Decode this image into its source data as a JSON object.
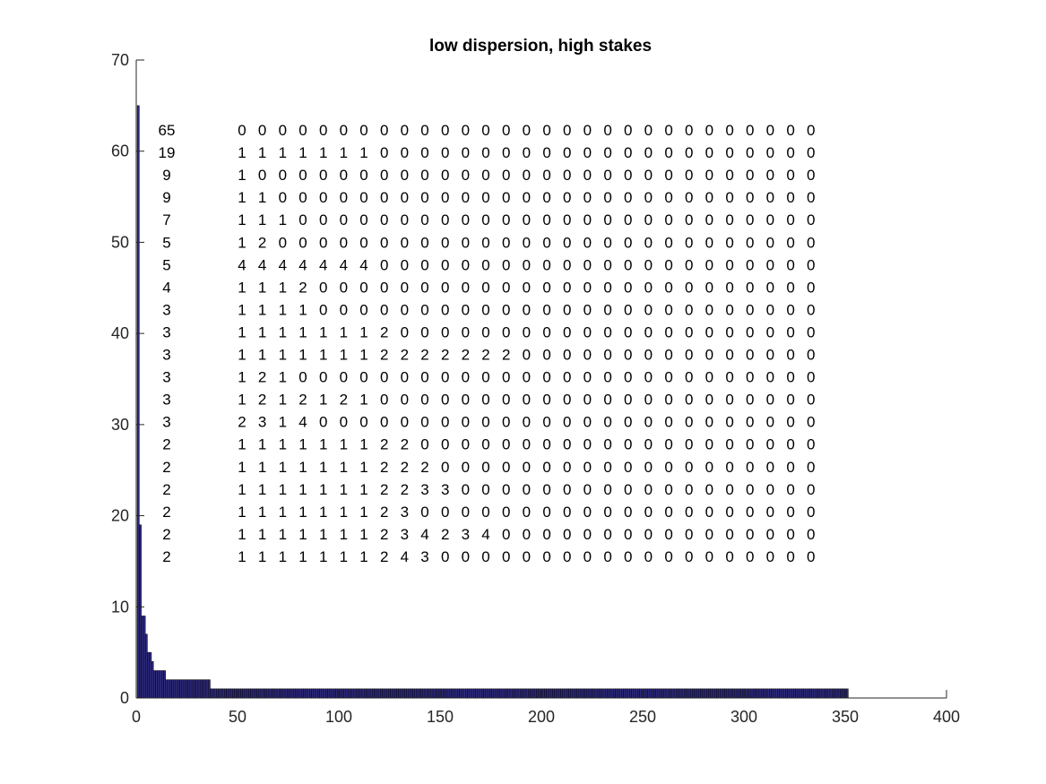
{
  "chart_data": {
    "type": "bar",
    "title": "low dispersion, high stakes",
    "xlabel": "",
    "ylabel": "",
    "xlim": [
      0,
      400
    ],
    "ylim": [
      0,
      70
    ],
    "xticks": [
      "0",
      "50",
      "100",
      "150",
      "200",
      "250",
      "300",
      "350",
      "400"
    ],
    "yticks": [
      "0",
      "10",
      "20",
      "30",
      "40",
      "50",
      "60",
      "70"
    ],
    "bar_color": "#2e2a80",
    "bar_edge_color": "#000000",
    "grid": false,
    "sorted_counts_summary": [
      {
        "from": 1,
        "to": 1,
        "value": 65
      },
      {
        "from": 2,
        "to": 2,
        "value": 19
      },
      {
        "from": 3,
        "to": 4,
        "value": 9
      },
      {
        "from": 5,
        "to": 5,
        "value": 7
      },
      {
        "from": 6,
        "to": 7,
        "value": 5
      },
      {
        "from": 8,
        "to": 8,
        "value": 4
      },
      {
        "from": 9,
        "to": 14,
        "value": 3
      },
      {
        "from": 15,
        "to": 36,
        "value": 2
      },
      {
        "from": 37,
        "to": 351,
        "value": 1
      }
    ],
    "annotation_table": {
      "counts": [
        "65",
        "19",
        "9",
        "9",
        "7",
        "5",
        "5",
        "4",
        "3",
        "3",
        "3",
        "3",
        "3",
        "3",
        "2",
        "2",
        "2",
        "2",
        "2",
        "2"
      ],
      "rows": [
        [
          "0",
          "0",
          "0",
          "0",
          "0",
          "0",
          "0",
          "0",
          "0",
          "0",
          "0",
          "0",
          "0",
          "0",
          "0",
          "0",
          "0",
          "0",
          "0",
          "0",
          "0",
          "0",
          "0",
          "0",
          "0",
          "0",
          "0",
          "0",
          "0"
        ],
        [
          "1",
          "1",
          "1",
          "1",
          "1",
          "1",
          "1",
          "0",
          "0",
          "0",
          "0",
          "0",
          "0",
          "0",
          "0",
          "0",
          "0",
          "0",
          "0",
          "0",
          "0",
          "0",
          "0",
          "0",
          "0",
          "0",
          "0",
          "0",
          "0"
        ],
        [
          "1",
          "0",
          "0",
          "0",
          "0",
          "0",
          "0",
          "0",
          "0",
          "0",
          "0",
          "0",
          "0",
          "0",
          "0",
          "0",
          "0",
          "0",
          "0",
          "0",
          "0",
          "0",
          "0",
          "0",
          "0",
          "0",
          "0",
          "0",
          "0"
        ],
        [
          "1",
          "1",
          "0",
          "0",
          "0",
          "0",
          "0",
          "0",
          "0",
          "0",
          "0",
          "0",
          "0",
          "0",
          "0",
          "0",
          "0",
          "0",
          "0",
          "0",
          "0",
          "0",
          "0",
          "0",
          "0",
          "0",
          "0",
          "0",
          "0"
        ],
        [
          "1",
          "1",
          "1",
          "0",
          "0",
          "0",
          "0",
          "0",
          "0",
          "0",
          "0",
          "0",
          "0",
          "0",
          "0",
          "0",
          "0",
          "0",
          "0",
          "0",
          "0",
          "0",
          "0",
          "0",
          "0",
          "0",
          "0",
          "0",
          "0"
        ],
        [
          "1",
          "2",
          "0",
          "0",
          "0",
          "0",
          "0",
          "0",
          "0",
          "0",
          "0",
          "0",
          "0",
          "0",
          "0",
          "0",
          "0",
          "0",
          "0",
          "0",
          "0",
          "0",
          "0",
          "0",
          "0",
          "0",
          "0",
          "0",
          "0"
        ],
        [
          "4",
          "4",
          "4",
          "4",
          "4",
          "4",
          "4",
          "0",
          "0",
          "0",
          "0",
          "0",
          "0",
          "0",
          "0",
          "0",
          "0",
          "0",
          "0",
          "0",
          "0",
          "0",
          "0",
          "0",
          "0",
          "0",
          "0",
          "0",
          "0"
        ],
        [
          "1",
          "1",
          "1",
          "2",
          "0",
          "0",
          "0",
          "0",
          "0",
          "0",
          "0",
          "0",
          "0",
          "0",
          "0",
          "0",
          "0",
          "0",
          "0",
          "0",
          "0",
          "0",
          "0",
          "0",
          "0",
          "0",
          "0",
          "0",
          "0"
        ],
        [
          "1",
          "1",
          "1",
          "1",
          "0",
          "0",
          "0",
          "0",
          "0",
          "0",
          "0",
          "0",
          "0",
          "0",
          "0",
          "0",
          "0",
          "0",
          "0",
          "0",
          "0",
          "0",
          "0",
          "0",
          "0",
          "0",
          "0",
          "0",
          "0"
        ],
        [
          "1",
          "1",
          "1",
          "1",
          "1",
          "1",
          "1",
          "2",
          "0",
          "0",
          "0",
          "0",
          "0",
          "0",
          "0",
          "0",
          "0",
          "0",
          "0",
          "0",
          "0",
          "0",
          "0",
          "0",
          "0",
          "0",
          "0",
          "0",
          "0"
        ],
        [
          "1",
          "1",
          "1",
          "1",
          "1",
          "1",
          "1",
          "2",
          "2",
          "2",
          "2",
          "2",
          "2",
          "2",
          "0",
          "0",
          "0",
          "0",
          "0",
          "0",
          "0",
          "0",
          "0",
          "0",
          "0",
          "0",
          "0",
          "0",
          "0"
        ],
        [
          "1",
          "2",
          "1",
          "0",
          "0",
          "0",
          "0",
          "0",
          "0",
          "0",
          "0",
          "0",
          "0",
          "0",
          "0",
          "0",
          "0",
          "0",
          "0",
          "0",
          "0",
          "0",
          "0",
          "0",
          "0",
          "0",
          "0",
          "0",
          "0"
        ],
        [
          "1",
          "2",
          "1",
          "2",
          "1",
          "2",
          "1",
          "0",
          "0",
          "0",
          "0",
          "0",
          "0",
          "0",
          "0",
          "0",
          "0",
          "0",
          "0",
          "0",
          "0",
          "0",
          "0",
          "0",
          "0",
          "0",
          "0",
          "0",
          "0"
        ],
        [
          "2",
          "3",
          "1",
          "4",
          "0",
          "0",
          "0",
          "0",
          "0",
          "0",
          "0",
          "0",
          "0",
          "0",
          "0",
          "0",
          "0",
          "0",
          "0",
          "0",
          "0",
          "0",
          "0",
          "0",
          "0",
          "0",
          "0",
          "0",
          "0"
        ],
        [
          "1",
          "1",
          "1",
          "1",
          "1",
          "1",
          "1",
          "2",
          "2",
          "0",
          "0",
          "0",
          "0",
          "0",
          "0",
          "0",
          "0",
          "0",
          "0",
          "0",
          "0",
          "0",
          "0",
          "0",
          "0",
          "0",
          "0",
          "0",
          "0"
        ],
        [
          "1",
          "1",
          "1",
          "1",
          "1",
          "1",
          "1",
          "2",
          "2",
          "2",
          "0",
          "0",
          "0",
          "0",
          "0",
          "0",
          "0",
          "0",
          "0",
          "0",
          "0",
          "0",
          "0",
          "0",
          "0",
          "0",
          "0",
          "0",
          "0"
        ],
        [
          "1",
          "1",
          "1",
          "1",
          "1",
          "1",
          "1",
          "2",
          "2",
          "3",
          "3",
          "0",
          "0",
          "0",
          "0",
          "0",
          "0",
          "0",
          "0",
          "0",
          "0",
          "0",
          "0",
          "0",
          "0",
          "0",
          "0",
          "0",
          "0"
        ],
        [
          "1",
          "1",
          "1",
          "1",
          "1",
          "1",
          "1",
          "2",
          "3",
          "0",
          "0",
          "0",
          "0",
          "0",
          "0",
          "0",
          "0",
          "0",
          "0",
          "0",
          "0",
          "0",
          "0",
          "0",
          "0",
          "0",
          "0",
          "0",
          "0"
        ],
        [
          "1",
          "1",
          "1",
          "1",
          "1",
          "1",
          "1",
          "2",
          "3",
          "4",
          "2",
          "3",
          "4",
          "0",
          "0",
          "0",
          "0",
          "0",
          "0",
          "0",
          "0",
          "0",
          "0",
          "0",
          "0",
          "0",
          "0",
          "0",
          "0"
        ],
        [
          "1",
          "1",
          "1",
          "1",
          "1",
          "1",
          "1",
          "2",
          "4",
          "3",
          "0",
          "0",
          "0",
          "0",
          "0",
          "0",
          "0",
          "0",
          "0",
          "0",
          "0",
          "0",
          "0",
          "0",
          "0",
          "0",
          "0",
          "0",
          "0"
        ]
      ]
    }
  }
}
